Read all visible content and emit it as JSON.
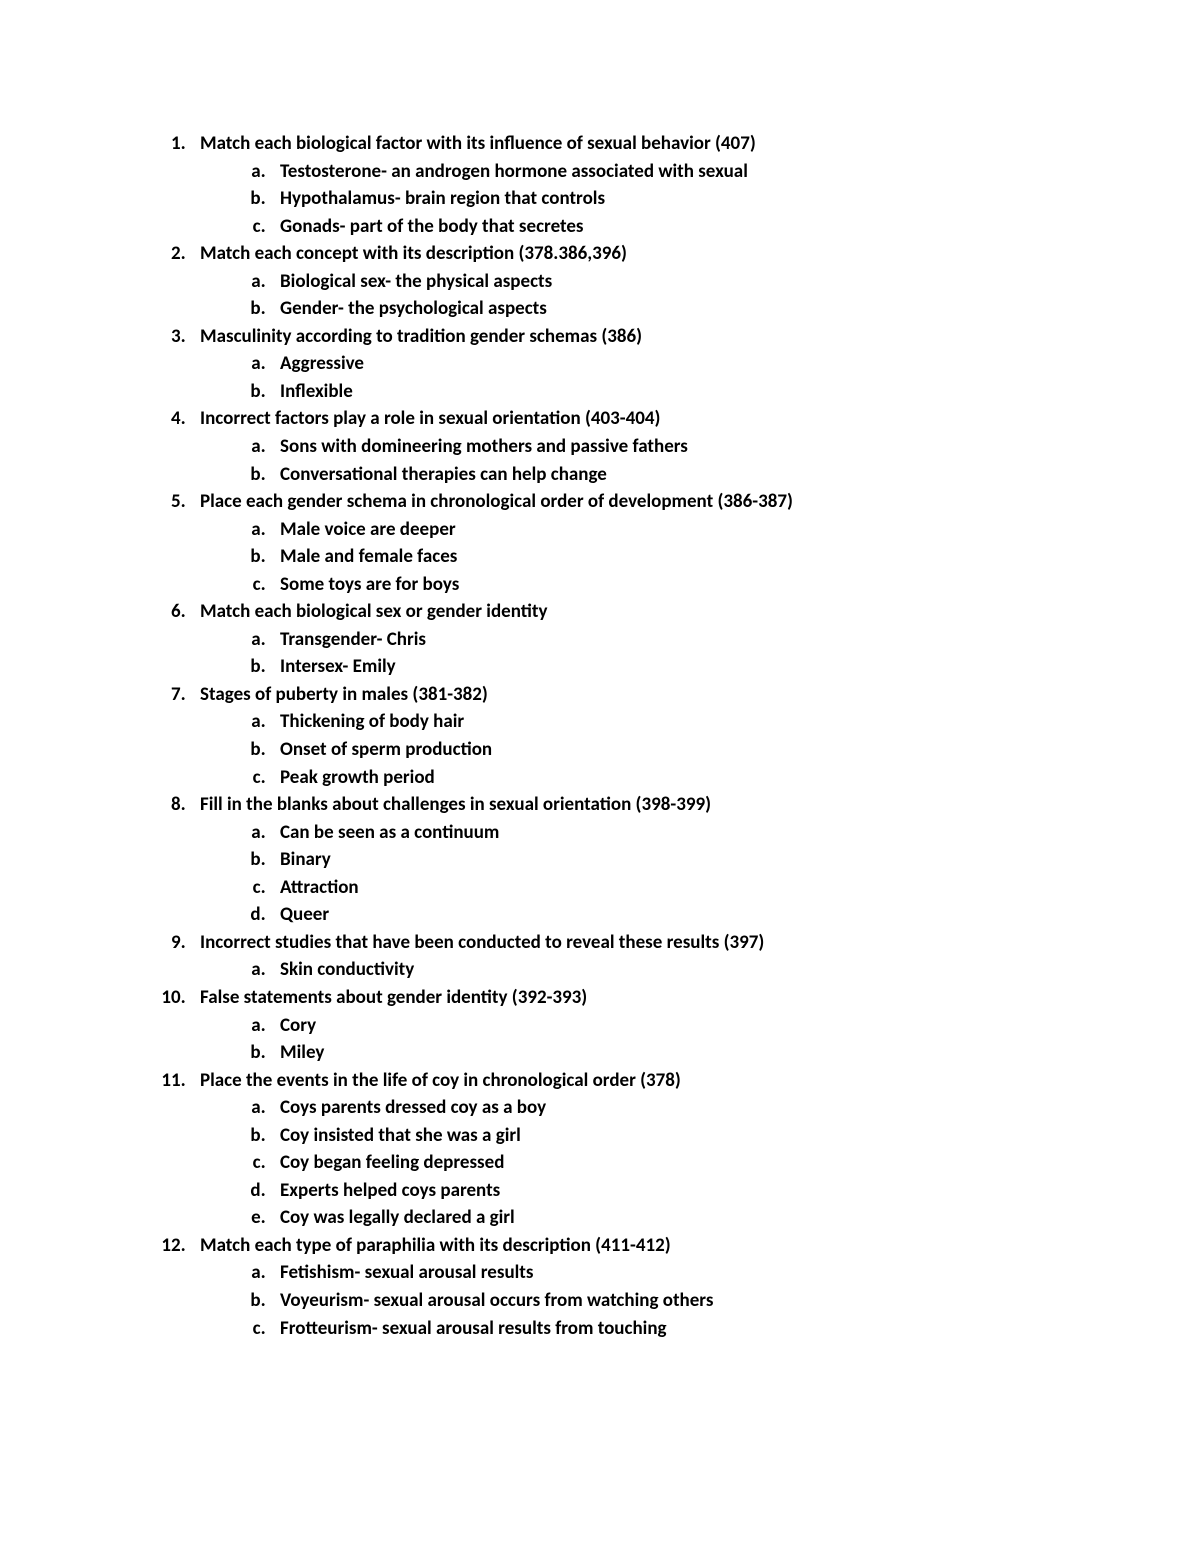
{
  "questions": [
    {
      "text": "Match each biological factor with its influence of sexual behavior (407)",
      "subs": [
        "Testosterone- an androgen hormone associated with sexual",
        "Hypothalamus- brain region that controls",
        "Gonads- part of the body that secretes"
      ]
    },
    {
      "text": "Match each concept with its description (378.386,396)",
      "subs": [
        "Biological sex- the physical aspects",
        "Gender- the psychological aspects"
      ]
    },
    {
      "text": "Masculinity according to tradition gender schemas (386)",
      "subs": [
        "Aggressive",
        "Inflexible"
      ]
    },
    {
      "text": "Incorrect factors play a role in sexual orientation (403-404)",
      "subs": [
        "Sons with domineering mothers and passive fathers",
        "Conversational therapies can help change"
      ]
    },
    {
      "text": "Place each gender schema in chronological order of development (386-387)",
      "subs": [
        "Male voice are deeper",
        "Male and female faces",
        "Some toys are for boys"
      ]
    },
    {
      "text": "Match each biological sex or gender identity",
      "subs": [
        "Transgender- Chris",
        "Intersex- Emily"
      ]
    },
    {
      "text": "Stages of puberty in males (381-382)",
      "subs": [
        "Thickening of body hair",
        "Onset of sperm production",
        "Peak growth period"
      ]
    },
    {
      "text": "Fill in the blanks about challenges in sexual orientation (398-399)",
      "subs": [
        "Can be seen as a continuum",
        "Binary",
        "Attraction",
        "Queer"
      ]
    },
    {
      "text": "Incorrect studies that have been conducted to reveal these results (397)",
      "subs": [
        "Skin conductivity"
      ]
    },
    {
      "text": "False statements about gender identity (392-393)",
      "subs": [
        "Cory",
        "Miley"
      ]
    },
    {
      "text": "Place the events in the life of coy in chronological order (378)",
      "subs": [
        "Coys parents dressed coy as a boy",
        "Coy insisted that she was a girl",
        "Coy began feeling depressed",
        "Experts helped coys parents",
        "Coy was legally declared a girl"
      ]
    },
    {
      "text": "Match each type of paraphilia with its description (411-412)",
      "subs": [
        "Fetishism- sexual arousal results",
        "Voyeurism- sexual arousal occurs from watching others",
        "Frotteurism- sexual arousal results from touching"
      ]
    }
  ]
}
